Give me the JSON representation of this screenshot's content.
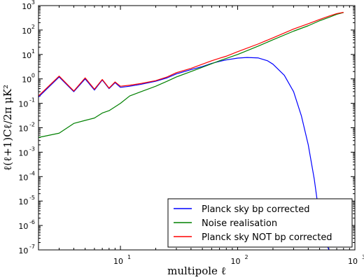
{
  "chart_data": {
    "type": "line",
    "xscale": "log",
    "yscale": "log",
    "xlim": [
      2,
      1000
    ],
    "ylim": [
      1e-07,
      1000
    ],
    "xlabel": "multipole ℓ",
    "ylabel": "ℓ(ℓ+1)Cℓ/2π μK²",
    "x_tick_labels": [
      {
        "value": 10,
        "base": "10",
        "exp": "1"
      },
      {
        "value": 100,
        "base": "10",
        "exp": "2"
      },
      {
        "value": 1000,
        "base": "10",
        "exp": "3"
      }
    ],
    "y_tick_labels": [
      {
        "value": 1e-07,
        "base": "10",
        "exp": "-7"
      },
      {
        "value": 1e-06,
        "base": "10",
        "exp": "-6"
      },
      {
        "value": 1e-05,
        "base": "10",
        "exp": "-5"
      },
      {
        "value": 0.0001,
        "base": "10",
        "exp": "-4"
      },
      {
        "value": 0.001,
        "base": "10",
        "exp": "-3"
      },
      {
        "value": 0.01,
        "base": "10",
        "exp": "-2"
      },
      {
        "value": 0.1,
        "base": "10",
        "exp": "-1"
      },
      {
        "value": 1,
        "base": "10",
        "exp": "0"
      },
      {
        "value": 10,
        "base": "10",
        "exp": "1"
      },
      {
        "value": 100,
        "base": "10",
        "exp": "2"
      },
      {
        "value": 1000,
        "base": "10",
        "exp": "3"
      }
    ],
    "legend_position": "lower-right",
    "series": [
      {
        "name": "Planck sky bp corrected",
        "color": "#0000ff",
        "x": [
          2,
          3,
          4,
          5,
          6,
          7,
          8,
          9,
          10,
          12,
          15,
          20,
          25,
          30,
          40,
          50,
          60,
          70,
          80,
          100,
          120,
          150,
          180,
          200,
          250,
          300,
          350,
          400,
          450,
          500,
          550,
          600
        ],
        "y": [
          0.18,
          1.2,
          0.3,
          1.0,
          0.35,
          0.9,
          0.4,
          0.7,
          0.45,
          0.5,
          0.6,
          0.8,
          1.1,
          1.6,
          2.4,
          3.2,
          4.3,
          5.2,
          6.0,
          7.1,
          7.5,
          7.2,
          5.5,
          4.0,
          1.4,
          0.3,
          0.03,
          0.002,
          8e-05,
          2e-06,
          3e-07,
          1e-07
        ]
      },
      {
        "name": "Noise realisation",
        "color": "#008000",
        "x": [
          2,
          3,
          4,
          5,
          6,
          7,
          8,
          10,
          12,
          15,
          20,
          25,
          30,
          40,
          50,
          70,
          100,
          150,
          200,
          300,
          400,
          500,
          600,
          700,
          800
        ],
        "y": [
          0.004,
          0.006,
          0.015,
          0.02,
          0.025,
          0.04,
          0.05,
          0.1,
          0.2,
          0.3,
          0.5,
          0.8,
          1.2,
          2.0,
          3.0,
          5.5,
          10,
          22,
          40,
          90,
          150,
          240,
          330,
          440,
          520
        ]
      },
      {
        "name": "Planck sky NOT bp corrected",
        "color": "#ff0000",
        "x": [
          2,
          3,
          4,
          5,
          6,
          7,
          8,
          9,
          10,
          12,
          15,
          20,
          25,
          30,
          40,
          50,
          60,
          70,
          80,
          100,
          150,
          200,
          300,
          400,
          500,
          600,
          700,
          800
        ],
        "y": [
          0.2,
          1.3,
          0.32,
          1.1,
          0.38,
          0.95,
          0.42,
          0.75,
          0.5,
          0.55,
          0.65,
          0.85,
          1.2,
          1.8,
          2.7,
          4.0,
          5.5,
          7.0,
          8.5,
          13,
          27,
          48,
          110,
          180,
          270,
          370,
          470,
          530
        ]
      }
    ]
  }
}
